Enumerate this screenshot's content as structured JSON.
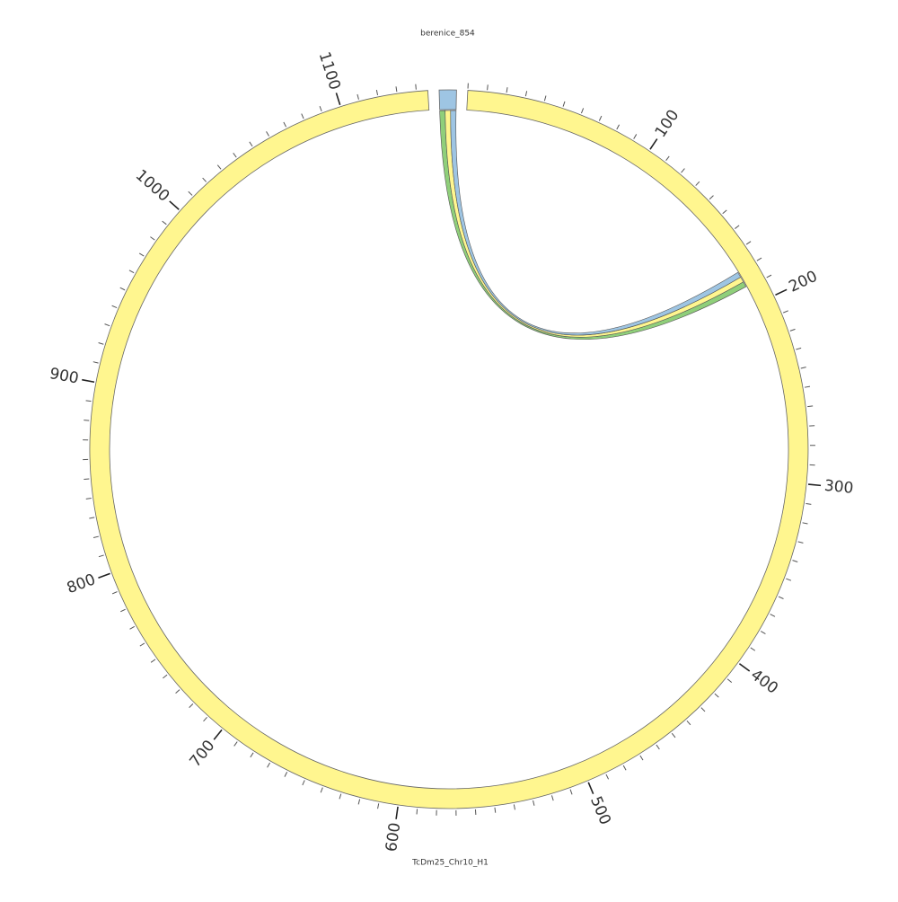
{
  "chart_data": {
    "type": "circos",
    "segments": [
      {
        "name": "TcDm25_Chr10_H1",
        "length": 1146,
        "color": "#fff68f",
        "ticks": [
          100,
          200,
          300,
          400,
          500,
          600,
          700,
          800,
          900,
          1000,
          1100
        ],
        "minor_tick_step": 10
      },
      {
        "name": "berenice_854",
        "length": 9,
        "color": "#9ec5e3"
      }
    ],
    "links": [
      {
        "color": "#8fcf7a",
        "from": {
          "segment": "berenice_854",
          "start": 0,
          "end": 3
        },
        "to": {
          "segment": "TcDm25_Chr10_H1",
          "start": 186,
          "end": 189
        }
      },
      {
        "color": "#fff68f",
        "from": {
          "segment": "berenice_854",
          "start": 3,
          "end": 6
        },
        "to": {
          "segment": "TcDm25_Chr10_H1",
          "start": 183,
          "end": 186
        }
      },
      {
        "color": "#9ec5e3",
        "from": {
          "segment": "berenice_854",
          "start": 6,
          "end": 9
        },
        "to": {
          "segment": "TcDm25_Chr10_H1",
          "start": 180,
          "end": 183
        }
      }
    ]
  }
}
